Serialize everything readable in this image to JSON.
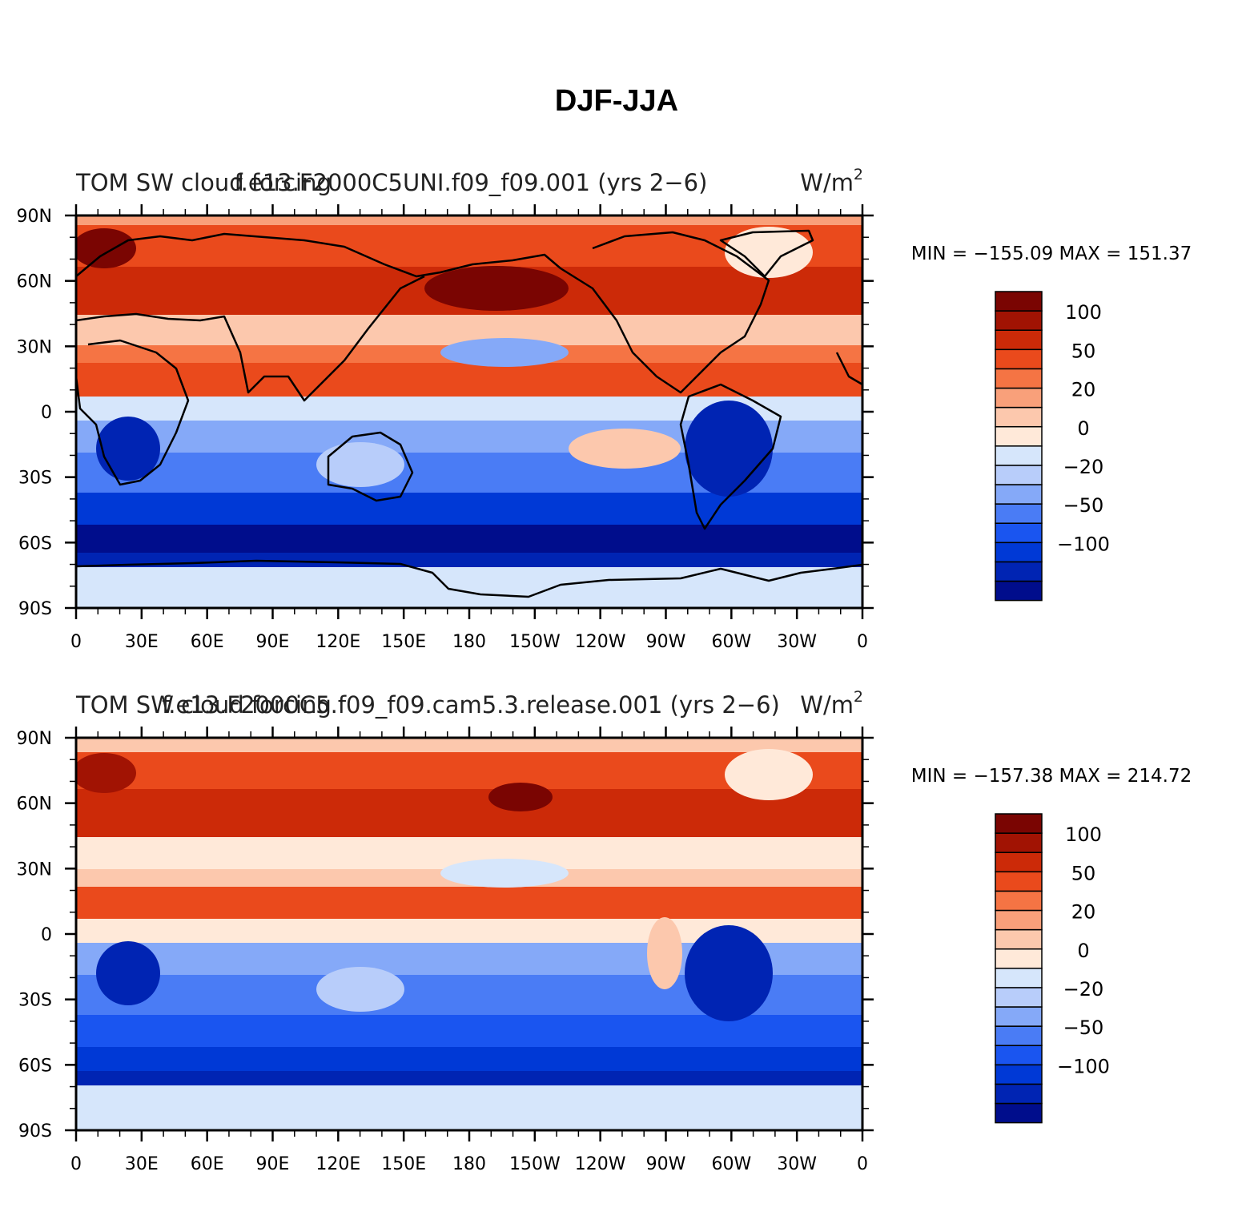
{
  "figure_title": "DJF-JJA",
  "palette": [
    "#000d8c",
    "#0024b3",
    "#0039d6",
    "#1a55f0",
    "#4a7cf5",
    "#85a9f8",
    "#b8cdfa",
    "#d6e6fb",
    "#ffe9d9",
    "#fcc8ad",
    "#f9a07a",
    "#f57444",
    "#ea4a1c",
    "#cc2a08",
    "#a11303",
    "#7a0502"
  ],
  "colorbar_labels": [
    {
      "text": "100",
      "index": 14
    },
    {
      "text": "50",
      "index": 12
    },
    {
      "text": "20",
      "index": 10
    },
    {
      "text": "0",
      "index": 8
    },
    {
      "text": "−20",
      "index": 6
    },
    {
      "text": "−50",
      "index": 4
    },
    {
      "text": "−100",
      "index": 2
    }
  ],
  "x_axis_labels": [
    "0",
    "30E",
    "60E",
    "90E",
    "120E",
    "150E",
    "180",
    "150W",
    "120W",
    "90W",
    "60W",
    "30W",
    "0"
  ],
  "y_axis_labels": [
    "90N",
    "60N",
    "30N",
    "0",
    "30S",
    "60S",
    "90S"
  ],
  "panels": [
    {
      "left_title": "TOM  SW  cloud  forcing",
      "center_title": "f.e13.F2000C5UNI.f09_f09.001  (yrs  2−6)",
      "units": "W/m",
      "units_sup": "2",
      "stats": "MIN  =  −155.09  MAX  =  151.37",
      "min": -155.09,
      "max": 151.37
    },
    {
      "left_title": "TOM  SW  cloud  forcing",
      "center_title": "f.e13.F2000C5.f09_f09.cam5.3.release.001  (yrs  2−6)",
      "units": "W/m",
      "units_sup": "2",
      "stats": "MIN  =  −157.38  MAX  =  214.72",
      "min": -157.38,
      "max": 214.72
    }
  ]
}
